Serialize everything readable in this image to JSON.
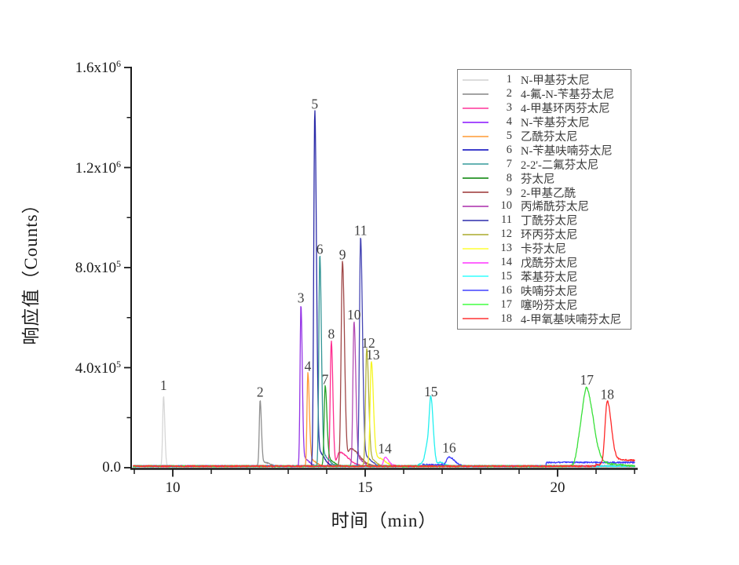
{
  "chart_data": {
    "type": "line",
    "title": "",
    "xlabel": "时间（min）",
    "ylabel": "响应值（Counts）",
    "xlim": [
      9,
      22.1
    ],
    "ylim": [
      0,
      1600000
    ],
    "grid": false,
    "legend_position": "top-right",
    "x_major_ticks": [
      {
        "t": 10,
        "label": "10"
      },
      {
        "t": 15,
        "label": "15"
      },
      {
        "t": 20,
        "label": "20"
      }
    ],
    "x_minor_ticks": [
      9,
      11,
      12,
      13,
      14,
      16,
      17,
      18,
      19,
      21,
      22
    ],
    "y_major_ticks": [
      {
        "v": 0,
        "label": "0.0"
      },
      {
        "v": 400000,
        "label": "4.0x10^5"
      },
      {
        "v": 800000,
        "label": "8.0x10^5"
      },
      {
        "v": 1200000,
        "label": "1.2x10^6"
      },
      {
        "v": 1600000,
        "label": "1.6x10^6"
      }
    ],
    "y_minor_ticks": [
      200000,
      600000,
      1000000,
      1400000
    ],
    "series": [
      {
        "num": 1,
        "name": "N-甲基芬太尼",
        "legend_color": "#dcdcdc",
        "color": "#d6d6d6",
        "peak_label": "1",
        "retention_min": 9.76,
        "peak_height_counts": 280000,
        "label_dy": -14,
        "components": [
          [
            9.76,
            280000,
            1.1,
            1.6
          ]
        ],
        "noise": 2200,
        "steps": []
      },
      {
        "num": 2,
        "name": "4-氟-N-苄基芬太尼",
        "legend_color": "#a3a3a3",
        "color": "#8f8f8f",
        "peak_label": "2",
        "retention_min": 12.27,
        "peak_height_counts": 262000,
        "label_dy": -11,
        "components": [
          [
            12.27,
            262000,
            1.1,
            1.7
          ],
          [
            12.38,
            15000,
            2,
            7
          ]
        ],
        "noise": 2200,
        "steps": []
      },
      {
        "num": 3,
        "name": "4-甲基环丙芬太尼",
        "legend_color": "#ff66b3",
        "color": "#ff2d90",
        "peak_label": "8",
        "retention_min": 14.12,
        "peak_height_counts": 500000,
        "label_dy": -9,
        "components": [
          [
            14.12,
            500000,
            1.4,
            2.0
          ],
          [
            14.33,
            55000,
            3,
            11
          ]
        ],
        "noise": 2500,
        "steps": []
      },
      {
        "num": 4,
        "name": "N-苄基芬太尼",
        "legend_color": "#a64dff",
        "color": "#9433e6",
        "peak_label": "3",
        "retention_min": 13.33,
        "peak_height_counts": 645000,
        "label_dy": -9,
        "components": [
          [
            13.33,
            645000,
            1.1,
            1.7
          ],
          [
            13.42,
            30000,
            2,
            6
          ]
        ],
        "noise": 2500,
        "steps": []
      },
      {
        "num": 5,
        "name": "乙酰芬太尼",
        "legend_color": "#ffb366",
        "color": "#ff9933",
        "peak_label": "4",
        "retention_min": 13.51,
        "peak_height_counts": 372000,
        "label_dy": -9,
        "components": [
          [
            13.51,
            372000,
            1.1,
            1.9
          ],
          [
            13.6,
            25000,
            2,
            6
          ]
        ],
        "noise": 2500,
        "steps": []
      },
      {
        "num": 6,
        "name": "N-苄基呋喃芬太尼",
        "legend_color": "#4040cc",
        "color": "#2a2aa8",
        "peak_label": "5",
        "retention_min": 13.69,
        "peak_height_counts": 1420000,
        "label_dy": -9,
        "components": [
          [
            13.69,
            1420000,
            1.3,
            2.1
          ],
          [
            13.78,
            60000,
            2,
            7
          ]
        ],
        "noise": 2500,
        "steps": []
      },
      {
        "num": 7,
        "name": "2-2'-二氟芬太尼",
        "legend_color": "#66b3b3",
        "color": "#339595",
        "peak_label": "6",
        "retention_min": 13.82,
        "peak_height_counts": 840000,
        "label_dy": -9,
        "components": [
          [
            13.82,
            840000,
            1.2,
            2.0
          ],
          [
            13.9,
            45000,
            2,
            7
          ]
        ],
        "noise": 2500,
        "steps": []
      },
      {
        "num": 8,
        "name": "芬太尼",
        "legend_color": "#40a040",
        "color": "#28a028",
        "peak_label": "7",
        "retention_min": 13.96,
        "peak_height_counts": 318000,
        "label_dy": -9,
        "components": [
          [
            13.96,
            318000,
            1.3,
            2.2
          ],
          [
            14.05,
            25000,
            2,
            7
          ]
        ],
        "noise": 2500,
        "steps": []
      },
      {
        "num": 9,
        "name": "2-甲基乙酰",
        "legend_color": "#b36666",
        "color": "#a04848",
        "peak_label": "9",
        "retention_min": 14.41,
        "peak_height_counts": 818000,
        "label_dy": -9,
        "components": [
          [
            14.41,
            818000,
            1.7,
            2.6
          ],
          [
            14.62,
            70000,
            3,
            11
          ]
        ],
        "noise": 2500,
        "steps": []
      },
      {
        "num": 10,
        "name": "丙烯酰芬太尼",
        "legend_color": "#bf60bf",
        "color": "#b44cb4",
        "peak_label": "10",
        "retention_min": 14.71,
        "peak_height_counts": 578000,
        "label_dy": -9,
        "components": [
          [
            14.71,
            578000,
            1.4,
            2.2
          ],
          [
            14.8,
            30000,
            2,
            7
          ]
        ],
        "noise": 2500,
        "steps": []
      },
      {
        "num": 11,
        "name": "丁酰芬太尼",
        "legend_color": "#6060c0",
        "color": "#4646b4",
        "peak_label": "11",
        "retention_min": 14.88,
        "peak_height_counts": 915000,
        "label_dy": -9,
        "components": [
          [
            14.88,
            915000,
            1.4,
            2.4
          ],
          [
            14.98,
            40000,
            2,
            8
          ]
        ],
        "noise": 2500,
        "steps": []
      },
      {
        "num": 12,
        "name": "环丙芬太尼",
        "legend_color": "#bfbf60",
        "color": "#b0b03a",
        "peak_label": "12",
        "retention_min": 15.04,
        "peak_height_counts": 465000,
        "label_dy": -9,
        "label_dx": 2,
        "components": [
          [
            15.04,
            465000,
            1.5,
            2.4
          ],
          [
            15.12,
            30000,
            2,
            7
          ]
        ],
        "noise": 2500,
        "steps": []
      },
      {
        "num": 13,
        "name": "卡芬太尼",
        "legend_color": "#ffff66",
        "color": "#f5f520",
        "peak_label": "13",
        "retention_min": 15.16,
        "peak_height_counts": 418000,
        "label_dy": -9,
        "label_dx": 2,
        "components": [
          [
            15.16,
            418000,
            1.6,
            2.6
          ],
          [
            15.3,
            35000,
            3,
            10
          ]
        ],
        "noise": 2500,
        "steps": []
      },
      {
        "num": 14,
        "name": "戊酰芬太尼",
        "legend_color": "#ff66ff",
        "color": "#ff40ff",
        "peak_label": "14",
        "retention_min": 15.51,
        "peak_height_counts": 36000,
        "label_dy": -11,
        "components": [
          [
            15.51,
            36000,
            1.6,
            3.5
          ],
          [
            15.6,
            8000,
            2,
            6
          ]
        ],
        "noise": 2500,
        "steps": []
      },
      {
        "num": 15,
        "name": "苯基芬太尼",
        "legend_color": "#66ffff",
        "color": "#22f0f0",
        "peak_label": "15",
        "retention_min": 16.71,
        "peak_height_counts": 258000,
        "label_dy": -13,
        "components": [
          [
            16.71,
            250000,
            2.0,
            3.0
          ],
          [
            16.62,
            90000,
            3,
            3
          ],
          [
            16.45,
            10000,
            3,
            3
          ],
          [
            16.95,
            16000,
            3,
            5
          ]
        ],
        "noise": 3000,
        "steps": []
      },
      {
        "num": 16,
        "name": "呋喃芬太尼",
        "legend_color": "#7070ff",
        "color": "#3c3cff",
        "peak_label": "16",
        "retention_min": 17.18,
        "peak_height_counts": 36000,
        "label_dy": -12,
        "components": [
          [
            17.18,
            36000,
            3.5,
            7
          ]
        ],
        "noise": 3000,
        "steps": [
          [
            16.5,
            17.0,
            6000
          ],
          [
            19.7,
            22.12,
            15000
          ]
        ]
      },
      {
        "num": 17,
        "name": "噻吩芬太尼",
        "legend_color": "#70ff70",
        "color": "#38e038",
        "peak_label": "17",
        "retention_min": 20.76,
        "peak_height_counts": 310000,
        "label_dy": -11,
        "components": [
          [
            20.76,
            305000,
            5.0,
            7.0
          ],
          [
            20.58,
            90000,
            4,
            4
          ],
          [
            20.95,
            40000,
            3,
            7
          ],
          [
            21.1,
            12000,
            3,
            20
          ]
        ],
        "noise": 3500,
        "steps": []
      },
      {
        "num": 18,
        "name": "4-甲氧基呋喃芬太尼",
        "legend_color": "#ff6666",
        "color": "#ff2828",
        "peak_label": "18",
        "retention_min": 21.29,
        "peak_height_counts": 255000,
        "label_dy": -10,
        "components": [
          [
            21.29,
            252000,
            2.8,
            5.0
          ],
          [
            21.5,
            20000,
            5,
            40
          ]
        ],
        "noise": 3000,
        "steps": [
          [
            21.0,
            22.12,
            6000
          ]
        ]
      }
    ]
  }
}
